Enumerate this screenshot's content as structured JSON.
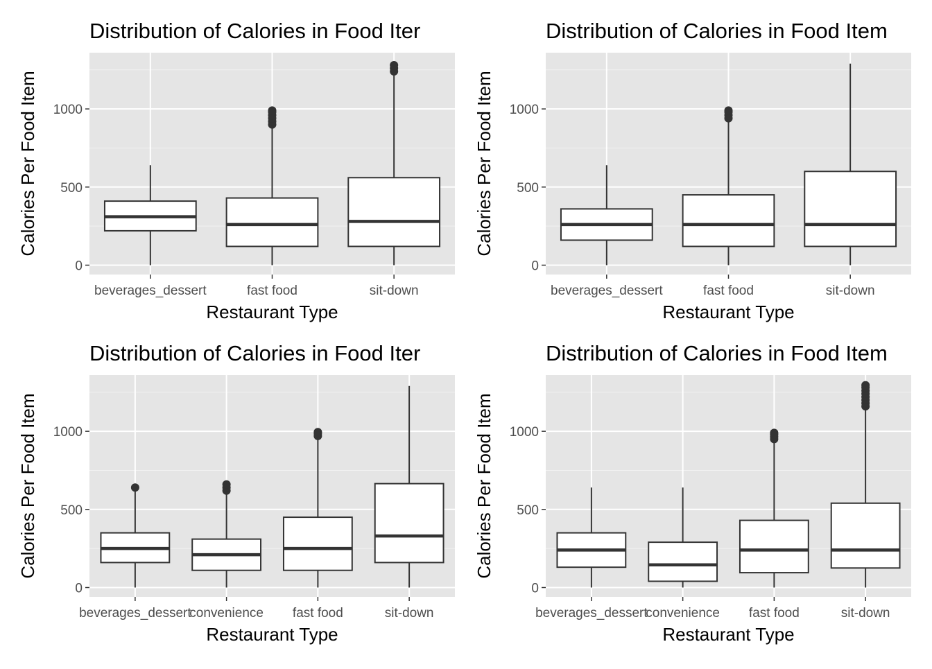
{
  "chart_data": [
    {
      "type": "box",
      "title": "Distribution of Calories in Food Iter",
      "xlabel": "Restaurant Type",
      "ylabel": "Calories Per Food Item",
      "ylim": [
        -60,
        1360
      ],
      "yticks": [
        0,
        500,
        1000
      ],
      "grid": true,
      "categories": [
        "beverages_dessert",
        "fast food",
        "sit-down"
      ],
      "boxes": [
        {
          "category": "beverages_dessert",
          "min": 0,
          "q1": 220,
          "median": 310,
          "q3": 410,
          "max": 640,
          "outliers": []
        },
        {
          "category": "fast food",
          "min": 0,
          "q1": 120,
          "median": 260,
          "q3": 430,
          "max": 890,
          "outliers": [
            900,
            920,
            940,
            960,
            980,
            990
          ]
        },
        {
          "category": "sit-down",
          "min": 0,
          "q1": 120,
          "median": 280,
          "q3": 560,
          "max": 1220,
          "outliers": [
            1240,
            1260,
            1280
          ]
        }
      ]
    },
    {
      "type": "box",
      "title": "Distribution of Calories in Food Item",
      "xlabel": "Restaurant Type",
      "ylabel": "Calories Per Food Item",
      "ylim": [
        -60,
        1360
      ],
      "yticks": [
        0,
        500,
        1000
      ],
      "grid": true,
      "categories": [
        "beverages_dessert",
        "fast food",
        "sit-down"
      ],
      "boxes": [
        {
          "category": "beverages_dessert",
          "min": 0,
          "q1": 160,
          "median": 260,
          "q3": 360,
          "max": 640,
          "outliers": []
        },
        {
          "category": "fast food",
          "min": 0,
          "q1": 120,
          "median": 260,
          "q3": 450,
          "max": 930,
          "outliers": [
            940,
            960,
            980,
            990
          ]
        },
        {
          "category": "sit-down",
          "min": 0,
          "q1": 120,
          "median": 260,
          "q3": 600,
          "max": 1290,
          "outliers": []
        }
      ]
    },
    {
      "type": "box",
      "title": "Distribution of Calories in Food Iter",
      "xlabel": "Restaurant Type",
      "ylabel": "Calories Per Food Item",
      "ylim": [
        -60,
        1360
      ],
      "yticks": [
        0,
        500,
        1000
      ],
      "grid": true,
      "categories": [
        "beverages_dessert",
        "convenience",
        "fast food",
        "sit-down"
      ],
      "boxes": [
        {
          "category": "beverages_dessert",
          "min": 0,
          "q1": 160,
          "median": 250,
          "q3": 350,
          "max": 630,
          "outliers": [
            640
          ]
        },
        {
          "category": "convenience",
          "min": 0,
          "q1": 110,
          "median": 210,
          "q3": 310,
          "max": 600,
          "outliers": [
            620,
            640,
            660
          ]
        },
        {
          "category": "fast food",
          "min": 0,
          "q1": 110,
          "median": 250,
          "q3": 450,
          "max": 960,
          "outliers": [
            970,
            985,
            995
          ]
        },
        {
          "category": "sit-down",
          "min": 0,
          "q1": 160,
          "median": 330,
          "q3": 665,
          "max": 1290,
          "outliers": []
        }
      ]
    },
    {
      "type": "box",
      "title": "Distribution of Calories in Food Item",
      "xlabel": "Restaurant Type",
      "ylabel": "Calories Per Food Item",
      "ylim": [
        -60,
        1360
      ],
      "yticks": [
        0,
        500,
        1000
      ],
      "grid": true,
      "categories": [
        "beverages_dessert",
        "convenience",
        "fast food",
        "sit-down"
      ],
      "boxes": [
        {
          "category": "beverages_dessert",
          "min": 0,
          "q1": 130,
          "median": 240,
          "q3": 350,
          "max": 640,
          "outliers": []
        },
        {
          "category": "convenience",
          "min": 0,
          "q1": 40,
          "median": 145,
          "q3": 290,
          "max": 640,
          "outliers": []
        },
        {
          "category": "fast food",
          "min": 0,
          "q1": 95,
          "median": 240,
          "q3": 430,
          "max": 940,
          "outliers": [
            950,
            965,
            980,
            990
          ]
        },
        {
          "category": "sit-down",
          "min": 0,
          "q1": 125,
          "median": 240,
          "q3": 540,
          "max": 1150,
          "outliers": [
            1160,
            1180,
            1200,
            1220,
            1240,
            1260,
            1280,
            1295
          ]
        }
      ]
    }
  ]
}
